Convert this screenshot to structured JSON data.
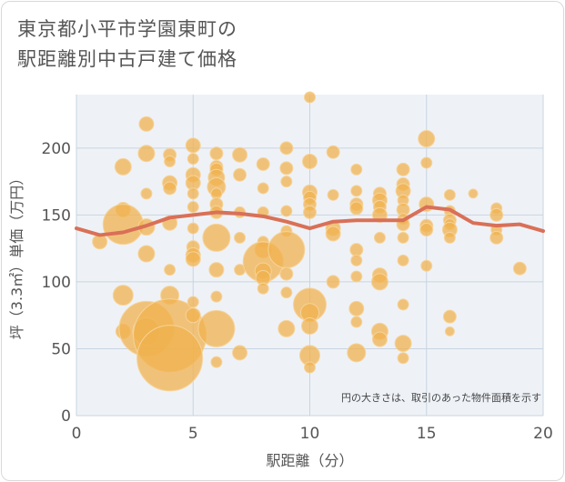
{
  "chart_data": {
    "type": "scatter",
    "title_lines": [
      "東京都小平市学園東町の",
      "駅距離別中古戸建て価格"
    ],
    "xlabel": "駅距離（分）",
    "ylabel": "坪（3.3㎡）単価（万円）",
    "note": "円の大きさは、取引のあった物件面積を示す",
    "xlim": [
      0,
      20
    ],
    "ylim": [
      0,
      240
    ],
    "x_ticks": [
      "0",
      "5",
      "10",
      "15",
      "20"
    ],
    "y_ticks": [
      "0",
      "50",
      "100",
      "150",
      "200"
    ],
    "grid": true,
    "colors": {
      "bubble": "#f0b24f",
      "bubble_stroke": "#f6d39a",
      "trend": "#d97057",
      "grid": "#c9d4e0",
      "plot_bg": "#eef2f7"
    },
    "points": [
      [
        1,
        130,
        8
      ],
      [
        2,
        186,
        9
      ],
      [
        2,
        154,
        8
      ],
      [
        2,
        143,
        22
      ],
      [
        2,
        90,
        11
      ],
      [
        2,
        63,
        8
      ],
      [
        3,
        218,
        8
      ],
      [
        3,
        196,
        9
      ],
      [
        3,
        166,
        6
      ],
      [
        3,
        141,
        9
      ],
      [
        3,
        121,
        9
      ],
      [
        3,
        65,
        30
      ],
      [
        3,
        63,
        15
      ],
      [
        4,
        195,
        7
      ],
      [
        4,
        190,
        6
      ],
      [
        4,
        174,
        8
      ],
      [
        4,
        170,
        7
      ],
      [
        4,
        144,
        8
      ],
      [
        4,
        109,
        6
      ],
      [
        4,
        90,
        10
      ],
      [
        4,
        60,
        40
      ],
      [
        4,
        43,
        36
      ],
      [
        5,
        202,
        8
      ],
      [
        5,
        192,
        6
      ],
      [
        5,
        180,
        8
      ],
      [
        5,
        174,
        8
      ],
      [
        5,
        166,
        6
      ],
      [
        5,
        156,
        6
      ],
      [
        5,
        140,
        6
      ],
      [
        5,
        126,
        7
      ],
      [
        5,
        120,
        8
      ],
      [
        5,
        117,
        8
      ],
      [
        5,
        85,
        6
      ],
      [
        5,
        75,
        8
      ],
      [
        6,
        196,
        7
      ],
      [
        6,
        186,
        7
      ],
      [
        6,
        184,
        7
      ],
      [
        6,
        178,
        9
      ],
      [
        6,
        171,
        10
      ],
      [
        6,
        166,
        6
      ],
      [
        6,
        158,
        7
      ],
      [
        6,
        152,
        7
      ],
      [
        6,
        133,
        15
      ],
      [
        6,
        109,
        8
      ],
      [
        6,
        89,
        6
      ],
      [
        6,
        65,
        20
      ],
      [
        6,
        40,
        6
      ],
      [
        7,
        195,
        8
      ],
      [
        7,
        180,
        7
      ],
      [
        7,
        152,
        6
      ],
      [
        7,
        133,
        6
      ],
      [
        7,
        109,
        6
      ],
      [
        7,
        47,
        8
      ],
      [
        8,
        188,
        7
      ],
      [
        8,
        170,
        6
      ],
      [
        8,
        152,
        6
      ],
      [
        8,
        130,
        6
      ],
      [
        8,
        124,
        9
      ],
      [
        8,
        115,
        22
      ],
      [
        8,
        108,
        9
      ],
      [
        8,
        103,
        8
      ],
      [
        8,
        95,
        6
      ],
      [
        9,
        200,
        7
      ],
      [
        9,
        185,
        7
      ],
      [
        9,
        175,
        6
      ],
      [
        9,
        153,
        6
      ],
      [
        9,
        138,
        6
      ],
      [
        9,
        124,
        20
      ],
      [
        9,
        106,
        7
      ],
      [
        9,
        92,
        6
      ],
      [
        9,
        65,
        9
      ],
      [
        10,
        238,
        6
      ],
      [
        10,
        190,
        8
      ],
      [
        10,
        167,
        8
      ],
      [
        10,
        163,
        7
      ],
      [
        10,
        158,
        7
      ],
      [
        10,
        152,
        7
      ],
      [
        10,
        83,
        18
      ],
      [
        10,
        77,
        10
      ],
      [
        10,
        67,
        9
      ],
      [
        10,
        45,
        11
      ],
      [
        10,
        36,
        6
      ],
      [
        11,
        197,
        7
      ],
      [
        11,
        165,
        6
      ],
      [
        11,
        140,
        8
      ],
      [
        11,
        136,
        8
      ],
      [
        11,
        100,
        7
      ],
      [
        12,
        184,
        6
      ],
      [
        12,
        168,
        6
      ],
      [
        12,
        158,
        7
      ],
      [
        12,
        155,
        7
      ],
      [
        12,
        124,
        7
      ],
      [
        12,
        116,
        6
      ],
      [
        12,
        104,
        6
      ],
      [
        12,
        80,
        8
      ],
      [
        12,
        70,
        6
      ],
      [
        12,
        47,
        10
      ],
      [
        13,
        166,
        7
      ],
      [
        13,
        161,
        8
      ],
      [
        13,
        156,
        7
      ],
      [
        13,
        150,
        8
      ],
      [
        13,
        133,
        6
      ],
      [
        13,
        105,
        8
      ],
      [
        13,
        100,
        9
      ],
      [
        13,
        63,
        9
      ],
      [
        13,
        57,
        8
      ],
      [
        14,
        184,
        7
      ],
      [
        14,
        173,
        7
      ],
      [
        14,
        168,
        8
      ],
      [
        14,
        161,
        6
      ],
      [
        14,
        154,
        7
      ],
      [
        14,
        147,
        6
      ],
      [
        14,
        143,
        7
      ],
      [
        14,
        133,
        6
      ],
      [
        14,
        116,
        6
      ],
      [
        14,
        83,
        6
      ],
      [
        14,
        54,
        9
      ],
      [
        14,
        43,
        6
      ],
      [
        15,
        207,
        9
      ],
      [
        15,
        189,
        6
      ],
      [
        15,
        158,
        8
      ],
      [
        15,
        142,
        7
      ],
      [
        15,
        139,
        7
      ],
      [
        15,
        112,
        6
      ],
      [
        16,
        165,
        6
      ],
      [
        16,
        153,
        6
      ],
      [
        16,
        146,
        7
      ],
      [
        16,
        143,
        6
      ],
      [
        16,
        139,
        8
      ],
      [
        16,
        133,
        6
      ],
      [
        16,
        74,
        7
      ],
      [
        16,
        63,
        5
      ],
      [
        17,
        166,
        5
      ],
      [
        18,
        155,
        6
      ],
      [
        18,
        150,
        7
      ],
      [
        18,
        139,
        6
      ],
      [
        18,
        133,
        7
      ],
      [
        19,
        110,
        7
      ]
    ],
    "trend": {
      "x": [
        0,
        1,
        2,
        3,
        4,
        5,
        6,
        7,
        8,
        9,
        10,
        11,
        12,
        13,
        14,
        15,
        16,
        17,
        18,
        19,
        20
      ],
      "y": [
        140,
        135,
        137,
        142,
        148,
        150,
        152,
        151,
        149,
        145,
        140,
        145,
        146,
        146,
        146,
        156,
        154,
        144,
        142,
        143,
        138
      ]
    }
  }
}
